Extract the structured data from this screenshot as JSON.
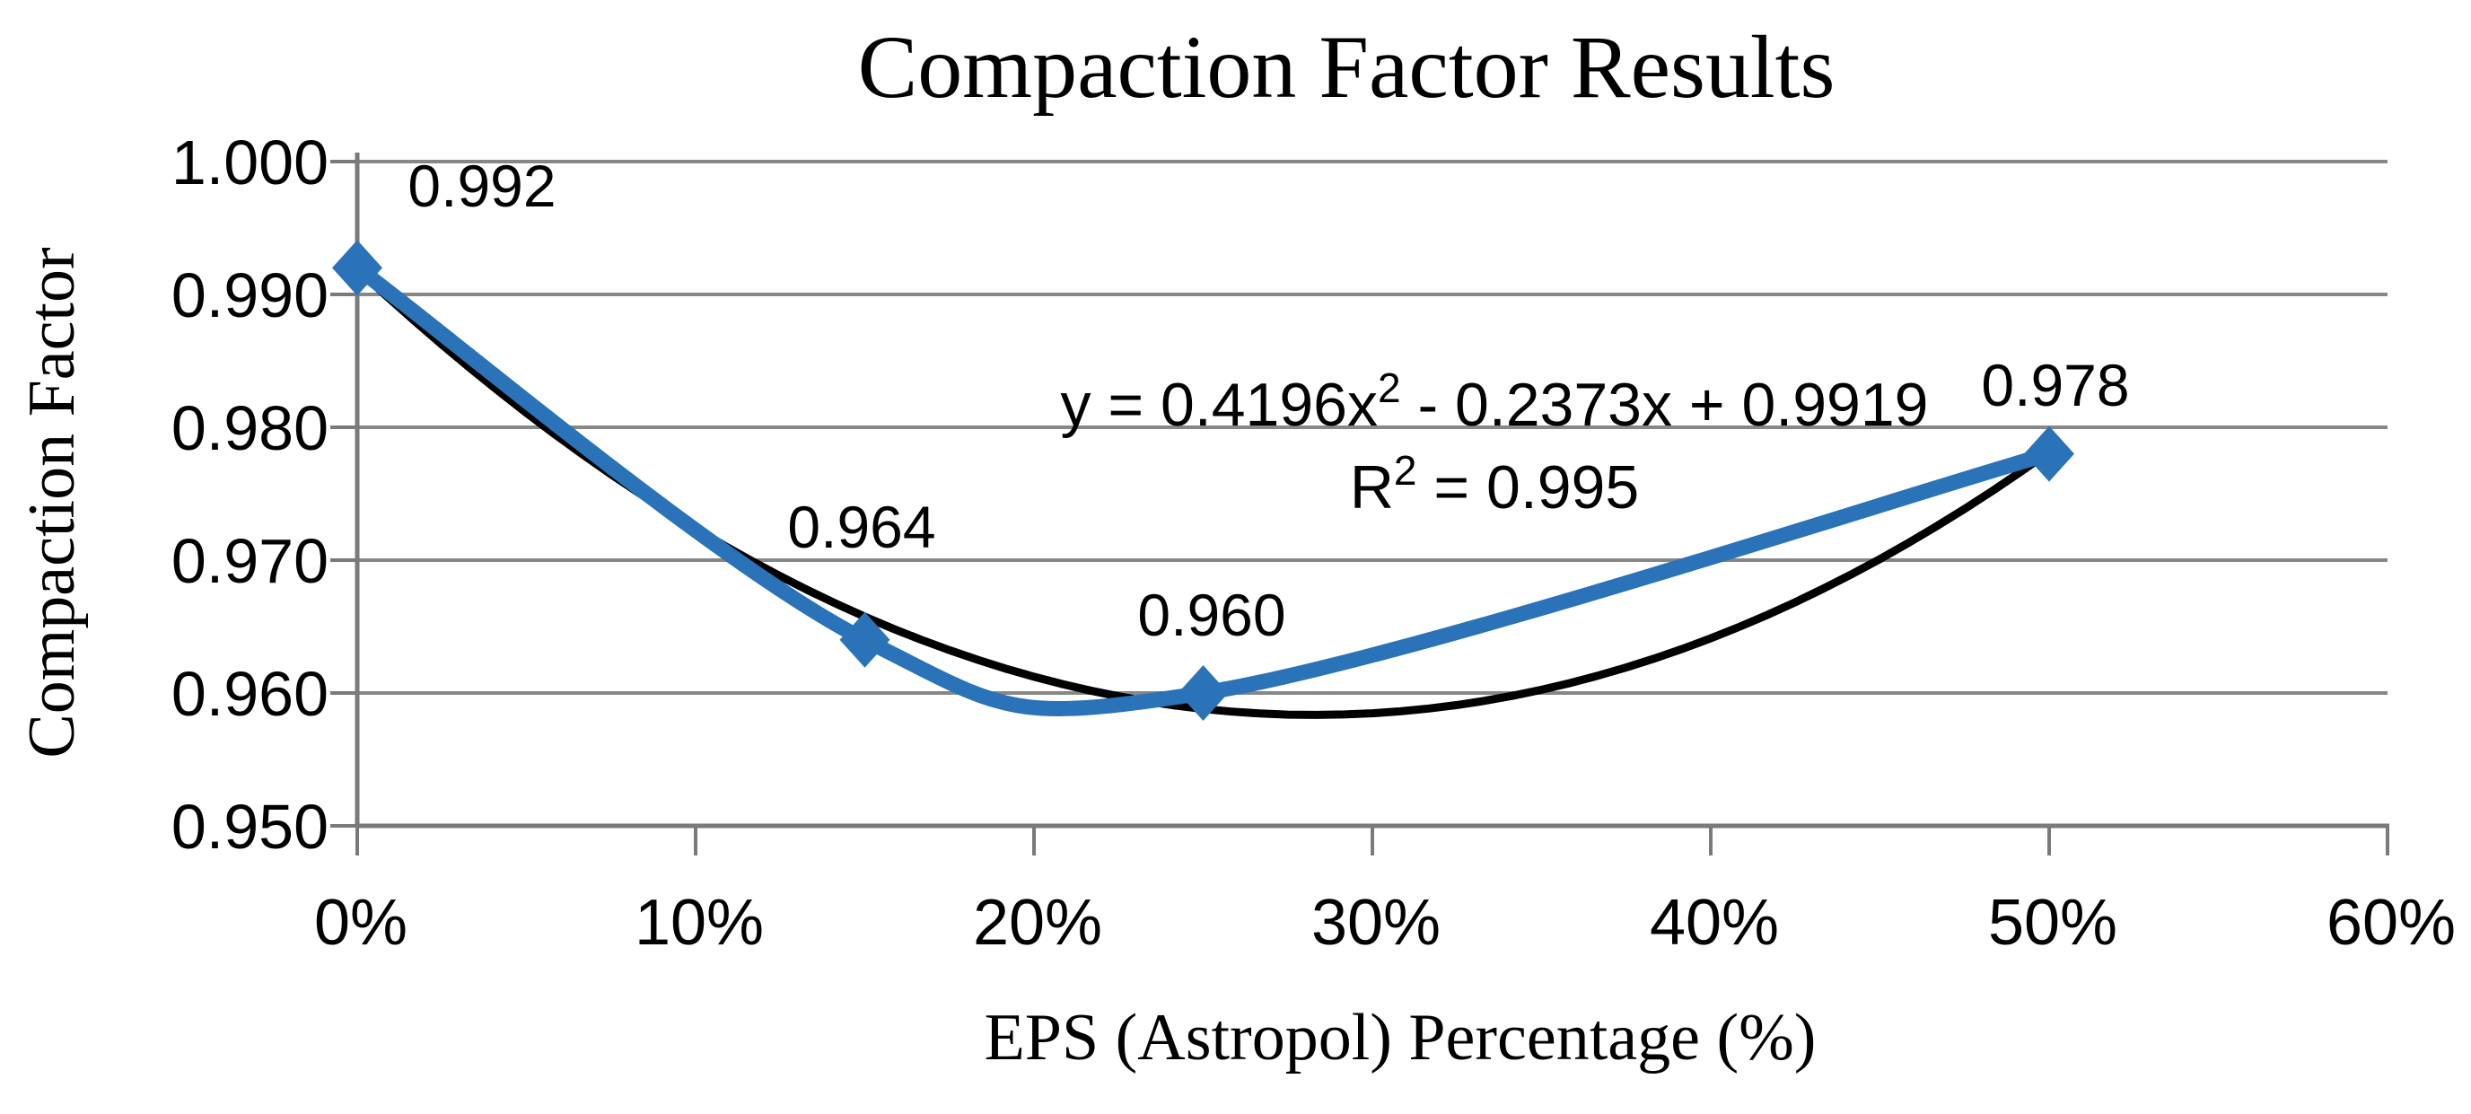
{
  "chart_data": {
    "type": "line",
    "title": "Compaction Factor Results",
    "xlabel": "EPS (Astropol) Percentage (%)",
    "ylabel": "Compaction Factor",
    "xlim": [
      0,
      0.6
    ],
    "ylim": [
      0.95,
      1.0
    ],
    "grid": true,
    "legend_position": "none",
    "x_ticks": [
      {
        "value": 0.0,
        "label": "0%"
      },
      {
        "value": 0.1,
        "label": "10%"
      },
      {
        "value": 0.2,
        "label": "20%"
      },
      {
        "value": 0.3,
        "label": "30%"
      },
      {
        "value": 0.4,
        "label": "40%"
      },
      {
        "value": 0.5,
        "label": "50%"
      },
      {
        "value": 0.6,
        "label": "60%"
      }
    ],
    "y_ticks": [
      {
        "value": 1.0,
        "label": "1.000"
      },
      {
        "value": 0.99,
        "label": "0.990"
      },
      {
        "value": 0.98,
        "label": "0.980"
      },
      {
        "value": 0.97,
        "label": "0.970"
      },
      {
        "value": 0.96,
        "label": "0.960"
      },
      {
        "value": 0.95,
        "label": "0.950"
      }
    ],
    "series": [
      {
        "name": "Compaction Factor",
        "x": [
          0.0,
          0.15,
          0.25,
          0.5
        ],
        "y": [
          0.992,
          0.964,
          0.96,
          0.978
        ],
        "point_labels": [
          "0.992",
          "0.964",
          "0.960",
          "0.978"
        ],
        "color": "#2a73b8",
        "marker": "diamond",
        "smooth": true
      }
    ],
    "trendline": {
      "type": "polynomial",
      "degree": 2,
      "a": 0.4196,
      "b": -0.2373,
      "c": 0.9919,
      "x_start": 0.0,
      "x_end": 0.5,
      "equation_label": "y = 0.4196x² - 0.2373x + 0.9919",
      "r_squared_label": "R² = 0.995",
      "color": "#000000"
    },
    "colors": {
      "series_line": "#2a73b8",
      "trendline": "#000000",
      "gridline": "#878787",
      "axis": "#7a7a7a",
      "text": "#000000",
      "background": "#ffffff"
    }
  }
}
